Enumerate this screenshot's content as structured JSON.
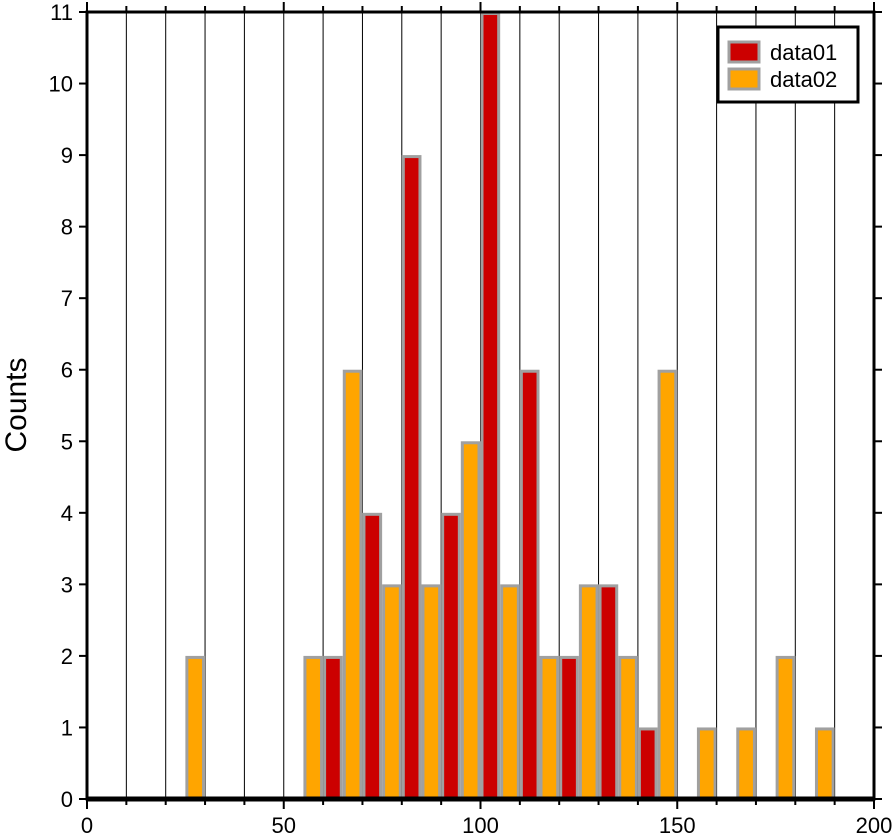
{
  "chart_data": {
    "type": "bar",
    "title": "",
    "xlabel": "",
    "ylabel": "Counts",
    "xlim": [
      0,
      200
    ],
    "ylim": [
      0,
      11
    ],
    "bin_width": 5,
    "x_ticks": [
      0,
      50,
      100,
      150,
      200
    ],
    "y_ticks": [
      0,
      1,
      2,
      3,
      4,
      5,
      6,
      7,
      8,
      9,
      10,
      11
    ],
    "grid": "vertical every 10",
    "legend_position": "top-right",
    "series": [
      {
        "name": "data01",
        "color": "#cc0000",
        "bin_starts": [
          60,
          70,
          80,
          90,
          100,
          110,
          120,
          130,
          140
        ],
        "values": [
          2,
          4,
          9,
          4,
          11,
          6,
          2,
          3,
          1
        ]
      },
      {
        "name": "data02",
        "color": "#ffa500",
        "bin_starts": [
          25,
          55,
          65,
          75,
          85,
          95,
          105,
          115,
          125,
          135,
          145,
          155,
          165,
          175,
          185
        ],
        "values": [
          2,
          2,
          6,
          3,
          3,
          5,
          3,
          2,
          3,
          2,
          6,
          1,
          1,
          2,
          1
        ]
      }
    ],
    "bar_edge_color": "#a0a0a0"
  }
}
